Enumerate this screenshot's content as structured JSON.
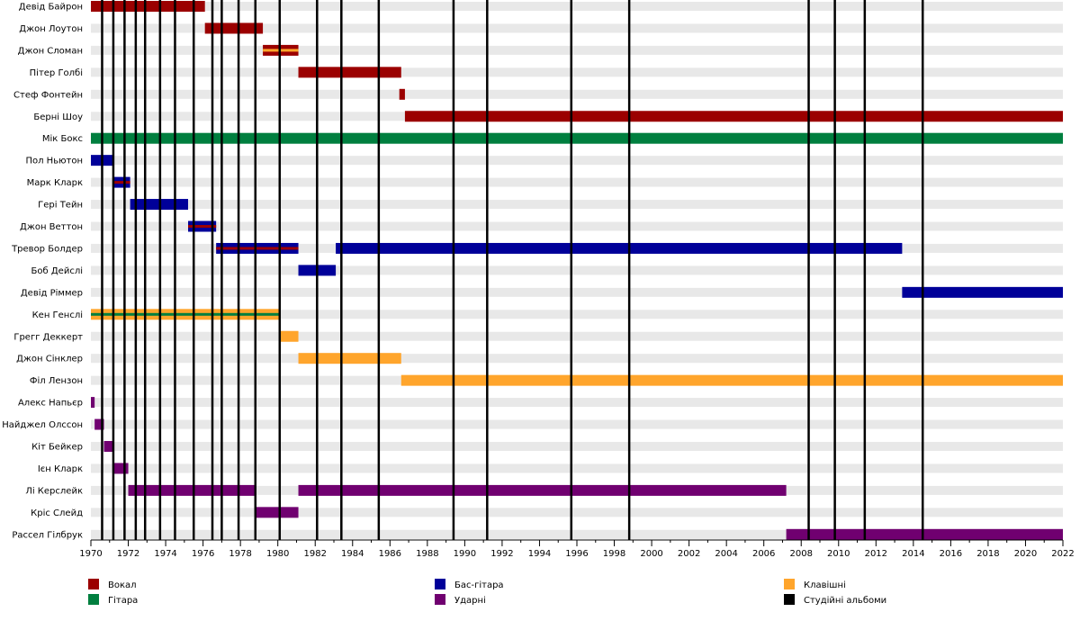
{
  "chart_data": {
    "type": "timeline",
    "title": "",
    "xlabel": "",
    "ylabel": "",
    "xlim": [
      1970,
      2022
    ],
    "x_ticks": [
      "1970",
      "1972",
      "1974",
      "1976",
      "1978",
      "1980",
      "1982",
      "1984",
      "1986",
      "1988",
      "1990",
      "1992",
      "1994",
      "1996",
      "1998",
      "2000",
      "2002",
      "2004",
      "2006",
      "2008",
      "2010",
      "2012",
      "2014",
      "2016",
      "2018",
      "2020",
      "2022"
    ],
    "roles": [
      {
        "key": "vocals",
        "label": "Вокал",
        "color": "#9b0000"
      },
      {
        "key": "guitar",
        "label": "Гітара",
        "color": "#007f3f"
      },
      {
        "key": "bass",
        "label": "Бас-гітара",
        "color": "#000099"
      },
      {
        "key": "drums",
        "label": "Ударні",
        "color": "#700070"
      },
      {
        "key": "keys",
        "label": "Клавішні",
        "color": "#ffa52c"
      },
      {
        "key": "albums",
        "label": "Студійні альбоми",
        "color": "#000000"
      }
    ],
    "members": [
      {
        "name": "Девід Байрон",
        "periods": [
          {
            "start": 1970.0,
            "end": 1976.1,
            "role": "vocals"
          }
        ]
      },
      {
        "name": "Джон Лоутон",
        "periods": [
          {
            "start": 1976.1,
            "end": 1979.2,
            "role": "vocals"
          }
        ]
      },
      {
        "name": "Джон Сломан",
        "periods": [
          {
            "start": 1979.2,
            "end": 1981.1,
            "role": "vocals",
            "stripe": "keys"
          }
        ]
      },
      {
        "name": "Пітер Голбі",
        "periods": [
          {
            "start": 1981.1,
            "end": 1986.6,
            "role": "vocals"
          }
        ]
      },
      {
        "name": "Стеф Фонтейн",
        "periods": [
          {
            "start": 1986.5,
            "end": 1986.8,
            "role": "vocals"
          }
        ]
      },
      {
        "name": "Берні Шоу",
        "periods": [
          {
            "start": 1986.8,
            "end": 2022.0,
            "role": "vocals"
          }
        ]
      },
      {
        "name": "Мік Бокс",
        "periods": [
          {
            "start": 1970.0,
            "end": 2022.0,
            "role": "guitar"
          }
        ]
      },
      {
        "name": "Пол Ньютон",
        "periods": [
          {
            "start": 1970.0,
            "end": 1971.2,
            "role": "bass"
          }
        ]
      },
      {
        "name": "Марк Кларк",
        "periods": [
          {
            "start": 1971.2,
            "end": 1972.1,
            "role": "bass",
            "stripe": "vocals"
          }
        ]
      },
      {
        "name": "Гері Тейн",
        "periods": [
          {
            "start": 1972.1,
            "end": 1975.2,
            "role": "bass"
          }
        ]
      },
      {
        "name": "Джон Веттон",
        "periods": [
          {
            "start": 1975.2,
            "end": 1976.7,
            "role": "bass",
            "stripe": "vocals"
          }
        ]
      },
      {
        "name": "Тревор Болдер",
        "periods": [
          {
            "start": 1976.7,
            "end": 1981.1,
            "role": "bass",
            "stripe": "vocals"
          },
          {
            "start": 1983.1,
            "end": 2013.4,
            "role": "bass"
          }
        ]
      },
      {
        "name": "Боб Дейслі",
        "periods": [
          {
            "start": 1981.1,
            "end": 1983.1,
            "role": "bass"
          }
        ]
      },
      {
        "name": "Девід Ріммер",
        "periods": [
          {
            "start": 2013.4,
            "end": 2022.0,
            "role": "bass"
          }
        ]
      },
      {
        "name": "Кен Генслі",
        "periods": [
          {
            "start": 1970.0,
            "end": 1980.1,
            "role": "keys",
            "stripe": "guitar"
          }
        ]
      },
      {
        "name": "Грегг Деккерт",
        "periods": [
          {
            "start": 1980.1,
            "end": 1981.1,
            "role": "keys"
          }
        ]
      },
      {
        "name": "Джон Сінклер",
        "periods": [
          {
            "start": 1981.1,
            "end": 1986.6,
            "role": "keys"
          }
        ]
      },
      {
        "name": "Філ Лензон",
        "periods": [
          {
            "start": 1986.6,
            "end": 2022.0,
            "role": "keys"
          }
        ]
      },
      {
        "name": "Алекс Напьєр",
        "periods": [
          {
            "start": 1970.0,
            "end": 1970.2,
            "role": "drums"
          }
        ]
      },
      {
        "name": "Найджел Олссон",
        "periods": [
          {
            "start": 1970.2,
            "end": 1970.7,
            "role": "drums"
          }
        ]
      },
      {
        "name": "Кіт Бейкер",
        "periods": [
          {
            "start": 1970.7,
            "end": 1971.2,
            "role": "drums"
          }
        ]
      },
      {
        "name": "Ієн Кларк",
        "periods": [
          {
            "start": 1971.2,
            "end": 1972.0,
            "role": "drums"
          }
        ]
      },
      {
        "name": "Лі Керслейк",
        "periods": [
          {
            "start": 1972.0,
            "end": 1978.8,
            "role": "drums"
          },
          {
            "start": 1981.1,
            "end": 2007.2,
            "role": "drums"
          }
        ]
      },
      {
        "name": "Кріс Слейд",
        "periods": [
          {
            "start": 1978.8,
            "end": 1981.1,
            "role": "drums"
          }
        ]
      },
      {
        "name": "Рассел Гілбрук",
        "periods": [
          {
            "start": 2007.2,
            "end": 2022.0,
            "role": "drums"
          }
        ]
      }
    ],
    "albums": [
      1970.6,
      1971.2,
      1971.8,
      1972.4,
      1972.9,
      1973.7,
      1974.5,
      1975.5,
      1976.5,
      1977.0,
      1977.9,
      1978.8,
      1980.1,
      1982.1,
      1983.4,
      1985.4,
      1989.4,
      1991.2,
      1995.7,
      1998.8,
      2008.4,
      2009.8,
      2011.4,
      2014.5
    ]
  }
}
